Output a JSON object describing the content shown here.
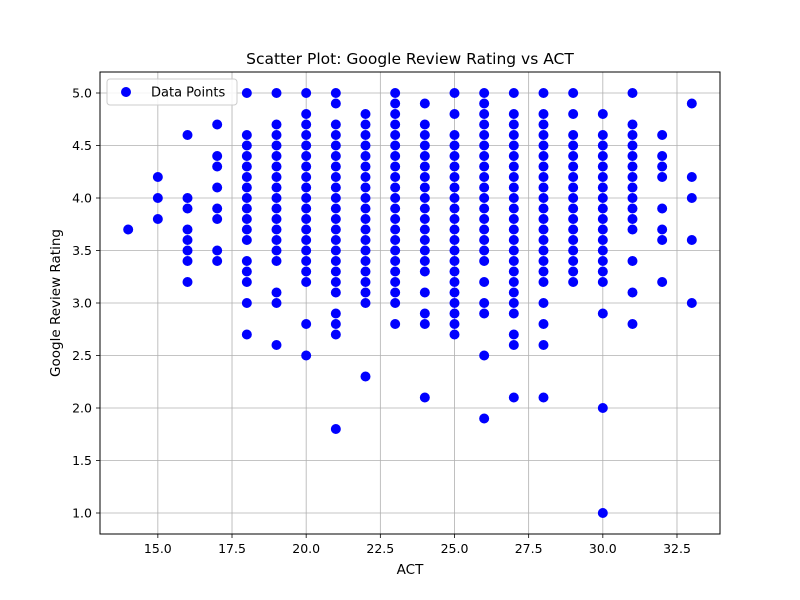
{
  "chart_data": {
    "type": "scatter",
    "title": "Scatter Plot: Google Review Rating vs ACT",
    "xlabel": "ACT",
    "ylabel": "Google Review Rating",
    "xlim": [
      13.05,
      33.95
    ],
    "ylim": [
      0.8,
      5.2
    ],
    "xticks": [
      15.0,
      17.5,
      20.0,
      22.5,
      25.0,
      27.5,
      30.0,
      32.5
    ],
    "xtick_labels": [
      "15.0",
      "17.5",
      "20.0",
      "22.5",
      "25.0",
      "27.5",
      "30.0",
      "32.5"
    ],
    "yticks": [
      1.0,
      1.5,
      2.0,
      2.5,
      3.0,
      3.5,
      4.0,
      4.5,
      5.0
    ],
    "ytick_labels": [
      "1.0",
      "1.5",
      "2.0",
      "2.5",
      "3.0",
      "3.5",
      "4.0",
      "4.5",
      "5.0"
    ],
    "grid": true,
    "legend_position": "top-left",
    "marker_color": "#0000ff",
    "series": [
      {
        "name": "Data Points",
        "points": [
          [
            14,
            3.7
          ],
          [
            15,
            4.2
          ],
          [
            15,
            4.0
          ],
          [
            15,
            3.8
          ],
          [
            16,
            4.6
          ],
          [
            16,
            4.0
          ],
          [
            16,
            3.9
          ],
          [
            16,
            3.7
          ],
          [
            16,
            3.6
          ],
          [
            16,
            3.5
          ],
          [
            16,
            3.4
          ],
          [
            16,
            3.2
          ],
          [
            17,
            4.7
          ],
          [
            17,
            4.4
          ],
          [
            17,
            4.3
          ],
          [
            17,
            4.1
          ],
          [
            17,
            3.9
          ],
          [
            17,
            3.8
          ],
          [
            17,
            3.5
          ],
          [
            17,
            3.4
          ],
          [
            18,
            5.0
          ],
          [
            18,
            4.6
          ],
          [
            18,
            4.5
          ],
          [
            18,
            4.4
          ],
          [
            18,
            4.3
          ],
          [
            18,
            4.2
          ],
          [
            18,
            4.1
          ],
          [
            18,
            4.0
          ],
          [
            18,
            3.9
          ],
          [
            18,
            3.8
          ],
          [
            18,
            3.7
          ],
          [
            18,
            3.6
          ],
          [
            18,
            3.4
          ],
          [
            18,
            3.3
          ],
          [
            18,
            3.2
          ],
          [
            18,
            3.0
          ],
          [
            18,
            2.7
          ],
          [
            19,
            5.0
          ],
          [
            19,
            4.7
          ],
          [
            19,
            4.6
          ],
          [
            19,
            4.5
          ],
          [
            19,
            4.4
          ],
          [
            19,
            4.3
          ],
          [
            19,
            4.2
          ],
          [
            19,
            4.1
          ],
          [
            19,
            4.0
          ],
          [
            19,
            3.9
          ],
          [
            19,
            3.8
          ],
          [
            19,
            3.7
          ],
          [
            19,
            3.6
          ],
          [
            19,
            3.5
          ],
          [
            19,
            3.4
          ],
          [
            19,
            3.1
          ],
          [
            19,
            3.0
          ],
          [
            19,
            2.6
          ],
          [
            20,
            5.0
          ],
          [
            20,
            4.8
          ],
          [
            20,
            4.7
          ],
          [
            20,
            4.6
          ],
          [
            20,
            4.5
          ],
          [
            20,
            4.4
          ],
          [
            20,
            4.3
          ],
          [
            20,
            4.2
          ],
          [
            20,
            4.1
          ],
          [
            20,
            4.0
          ],
          [
            20,
            3.9
          ],
          [
            20,
            3.8
          ],
          [
            20,
            3.7
          ],
          [
            20,
            3.6
          ],
          [
            20,
            3.5
          ],
          [
            20,
            3.4
          ],
          [
            20,
            3.3
          ],
          [
            20,
            3.2
          ],
          [
            20,
            2.8
          ],
          [
            20,
            2.5
          ],
          [
            21,
            5.0
          ],
          [
            21,
            4.9
          ],
          [
            21,
            4.7
          ],
          [
            21,
            4.6
          ],
          [
            21,
            4.5
          ],
          [
            21,
            4.4
          ],
          [
            21,
            4.3
          ],
          [
            21,
            4.2
          ],
          [
            21,
            4.1
          ],
          [
            21,
            4.0
          ],
          [
            21,
            3.9
          ],
          [
            21,
            3.8
          ],
          [
            21,
            3.7
          ],
          [
            21,
            3.6
          ],
          [
            21,
            3.5
          ],
          [
            21,
            3.4
          ],
          [
            21,
            3.3
          ],
          [
            21,
            3.2
          ],
          [
            21,
            3.1
          ],
          [
            21,
            2.9
          ],
          [
            21,
            2.8
          ],
          [
            21,
            2.7
          ],
          [
            21,
            1.8
          ],
          [
            22,
            4.8
          ],
          [
            22,
            4.7
          ],
          [
            22,
            4.6
          ],
          [
            22,
            4.5
          ],
          [
            22,
            4.4
          ],
          [
            22,
            4.3
          ],
          [
            22,
            4.2
          ],
          [
            22,
            4.1
          ],
          [
            22,
            4.0
          ],
          [
            22,
            3.9
          ],
          [
            22,
            3.8
          ],
          [
            22,
            3.7
          ],
          [
            22,
            3.6
          ],
          [
            22,
            3.5
          ],
          [
            22,
            3.4
          ],
          [
            22,
            3.3
          ],
          [
            22,
            3.2
          ],
          [
            22,
            3.1
          ],
          [
            22,
            3.0
          ],
          [
            22,
            2.3
          ],
          [
            23,
            5.0
          ],
          [
            23,
            4.9
          ],
          [
            23,
            4.8
          ],
          [
            23,
            4.7
          ],
          [
            23,
            4.6
          ],
          [
            23,
            4.5
          ],
          [
            23,
            4.4
          ],
          [
            23,
            4.3
          ],
          [
            23,
            4.2
          ],
          [
            23,
            4.1
          ],
          [
            23,
            4.0
          ],
          [
            23,
            3.9
          ],
          [
            23,
            3.8
          ],
          [
            23,
            3.7
          ],
          [
            23,
            3.6
          ],
          [
            23,
            3.5
          ],
          [
            23,
            3.4
          ],
          [
            23,
            3.3
          ],
          [
            23,
            3.2
          ],
          [
            23,
            3.1
          ],
          [
            23,
            3.0
          ],
          [
            23,
            2.8
          ],
          [
            24,
            4.9
          ],
          [
            24,
            4.7
          ],
          [
            24,
            4.6
          ],
          [
            24,
            4.5
          ],
          [
            24,
            4.4
          ],
          [
            24,
            4.3
          ],
          [
            24,
            4.2
          ],
          [
            24,
            4.1
          ],
          [
            24,
            4.0
          ],
          [
            24,
            3.9
          ],
          [
            24,
            3.8
          ],
          [
            24,
            3.7
          ],
          [
            24,
            3.6
          ],
          [
            24,
            3.5
          ],
          [
            24,
            3.4
          ],
          [
            24,
            3.3
          ],
          [
            24,
            3.1
          ],
          [
            24,
            2.9
          ],
          [
            24,
            2.8
          ],
          [
            24,
            2.1
          ],
          [
            25,
            5.0
          ],
          [
            25,
            4.8
          ],
          [
            25,
            4.6
          ],
          [
            25,
            4.5
          ],
          [
            25,
            4.4
          ],
          [
            25,
            4.3
          ],
          [
            25,
            4.2
          ],
          [
            25,
            4.1
          ],
          [
            25,
            4.0
          ],
          [
            25,
            3.9
          ],
          [
            25,
            3.8
          ],
          [
            25,
            3.7
          ],
          [
            25,
            3.6
          ],
          [
            25,
            3.5
          ],
          [
            25,
            3.4
          ],
          [
            25,
            3.3
          ],
          [
            25,
            3.2
          ],
          [
            25,
            3.1
          ],
          [
            25,
            3.0
          ],
          [
            25,
            2.9
          ],
          [
            25,
            2.8
          ],
          [
            25,
            2.7
          ],
          [
            26,
            5.0
          ],
          [
            26,
            4.9
          ],
          [
            26,
            4.8
          ],
          [
            26,
            4.7
          ],
          [
            26,
            4.6
          ],
          [
            26,
            4.5
          ],
          [
            26,
            4.4
          ],
          [
            26,
            4.3
          ],
          [
            26,
            4.2
          ],
          [
            26,
            4.1
          ],
          [
            26,
            4.0
          ],
          [
            26,
            3.9
          ],
          [
            26,
            3.8
          ],
          [
            26,
            3.7
          ],
          [
            26,
            3.6
          ],
          [
            26,
            3.5
          ],
          [
            26,
            3.4
          ],
          [
            26,
            3.2
          ],
          [
            26,
            3.0
          ],
          [
            26,
            2.9
          ],
          [
            26,
            2.5
          ],
          [
            26,
            1.9
          ],
          [
            27,
            5.0
          ],
          [
            27,
            4.8
          ],
          [
            27,
            4.7
          ],
          [
            27,
            4.6
          ],
          [
            27,
            4.5
          ],
          [
            27,
            4.4
          ],
          [
            27,
            4.3
          ],
          [
            27,
            4.2
          ],
          [
            27,
            4.1
          ],
          [
            27,
            4.0
          ],
          [
            27,
            3.9
          ],
          [
            27,
            3.8
          ],
          [
            27,
            3.7
          ],
          [
            27,
            3.6
          ],
          [
            27,
            3.5
          ],
          [
            27,
            3.4
          ],
          [
            27,
            3.3
          ],
          [
            27,
            3.2
          ],
          [
            27,
            3.1
          ],
          [
            27,
            3.0
          ],
          [
            27,
            2.9
          ],
          [
            27,
            2.7
          ],
          [
            27,
            2.6
          ],
          [
            27,
            2.1
          ],
          [
            28,
            5.0
          ],
          [
            28,
            4.8
          ],
          [
            28,
            4.7
          ],
          [
            28,
            4.6
          ],
          [
            28,
            4.5
          ],
          [
            28,
            4.4
          ],
          [
            28,
            4.3
          ],
          [
            28,
            4.2
          ],
          [
            28,
            4.1
          ],
          [
            28,
            4.0
          ],
          [
            28,
            3.9
          ],
          [
            28,
            3.8
          ],
          [
            28,
            3.7
          ],
          [
            28,
            3.6
          ],
          [
            28,
            3.5
          ],
          [
            28,
            3.4
          ],
          [
            28,
            3.3
          ],
          [
            28,
            3.2
          ],
          [
            28,
            3.0
          ],
          [
            28,
            2.8
          ],
          [
            28,
            2.6
          ],
          [
            28,
            2.1
          ],
          [
            29,
            5.0
          ],
          [
            29,
            4.8
          ],
          [
            29,
            4.6
          ],
          [
            29,
            4.5
          ],
          [
            29,
            4.4
          ],
          [
            29,
            4.3
          ],
          [
            29,
            4.2
          ],
          [
            29,
            4.1
          ],
          [
            29,
            4.0
          ],
          [
            29,
            3.9
          ],
          [
            29,
            3.8
          ],
          [
            29,
            3.7
          ],
          [
            29,
            3.6
          ],
          [
            29,
            3.5
          ],
          [
            29,
            3.4
          ],
          [
            29,
            3.3
          ],
          [
            29,
            3.2
          ],
          [
            30,
            4.8
          ],
          [
            30,
            4.6
          ],
          [
            30,
            4.5
          ],
          [
            30,
            4.4
          ],
          [
            30,
            4.3
          ],
          [
            30,
            4.2
          ],
          [
            30,
            4.1
          ],
          [
            30,
            4.0
          ],
          [
            30,
            3.9
          ],
          [
            30,
            3.8
          ],
          [
            30,
            3.7
          ],
          [
            30,
            3.6
          ],
          [
            30,
            3.5
          ],
          [
            30,
            3.4
          ],
          [
            30,
            3.3
          ],
          [
            30,
            3.2
          ],
          [
            30,
            2.9
          ],
          [
            30,
            2.0
          ],
          [
            30,
            1.0
          ],
          [
            31,
            5.0
          ],
          [
            31,
            4.7
          ],
          [
            31,
            4.6
          ],
          [
            31,
            4.5
          ],
          [
            31,
            4.4
          ],
          [
            31,
            4.3
          ],
          [
            31,
            4.2
          ],
          [
            31,
            4.1
          ],
          [
            31,
            4.0
          ],
          [
            31,
            3.9
          ],
          [
            31,
            3.8
          ],
          [
            31,
            3.7
          ],
          [
            31,
            3.4
          ],
          [
            31,
            3.1
          ],
          [
            31,
            2.8
          ],
          [
            32,
            4.6
          ],
          [
            32,
            4.4
          ],
          [
            32,
            4.3
          ],
          [
            32,
            4.2
          ],
          [
            32,
            3.9
          ],
          [
            32,
            3.7
          ],
          [
            32,
            3.6
          ],
          [
            32,
            3.2
          ],
          [
            33,
            4.9
          ],
          [
            33,
            4.2
          ],
          [
            33,
            4.0
          ],
          [
            33,
            3.6
          ],
          [
            33,
            3.0
          ]
        ]
      }
    ]
  }
}
